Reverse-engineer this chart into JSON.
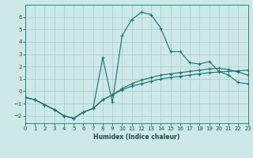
{
  "xlabel": "Humidex (Indice chaleur)",
  "bg_color": "#cde8e8",
  "grid_color": "#aacccc",
  "line_color": "#1a7070",
  "xlim": [
    0,
    23
  ],
  "ylim": [
    -2.6,
    7.0
  ],
  "xticks": [
    0,
    1,
    2,
    3,
    4,
    5,
    6,
    7,
    8,
    9,
    10,
    11,
    12,
    13,
    14,
    15,
    16,
    17,
    18,
    19,
    20,
    21,
    22,
    23
  ],
  "yticks": [
    -2,
    -1,
    0,
    1,
    2,
    3,
    4,
    5,
    6
  ],
  "curve1_x": [
    0,
    1,
    2,
    3,
    4,
    5,
    6,
    7,
    8,
    9,
    10,
    11,
    12,
    13,
    14,
    15,
    16,
    17,
    18,
    19,
    20,
    21,
    22,
    23
  ],
  "curve1_y": [
    -0.5,
    -0.7,
    -1.1,
    -1.5,
    -2.0,
    -2.2,
    -1.7,
    -1.4,
    -0.7,
    -0.3,
    0.1,
    0.4,
    0.6,
    0.8,
    1.0,
    1.1,
    1.2,
    1.3,
    1.4,
    1.5,
    1.55,
    1.6,
    1.65,
    1.7
  ],
  "curve2_x": [
    0,
    1,
    2,
    3,
    4,
    5,
    6,
    7,
    8,
    9,
    10,
    11,
    12,
    13,
    14,
    15,
    16,
    17,
    18,
    19,
    20,
    21,
    22,
    23
  ],
  "curve2_y": [
    -0.5,
    -0.7,
    -1.1,
    -1.5,
    -2.0,
    -2.2,
    -1.7,
    -1.4,
    -0.7,
    -0.3,
    0.2,
    0.6,
    0.9,
    1.1,
    1.3,
    1.4,
    1.5,
    1.6,
    1.7,
    1.8,
    1.85,
    1.75,
    1.55,
    1.3
  ],
  "curve3_x": [
    0,
    1,
    2,
    3,
    4,
    5,
    6,
    7,
    8,
    9,
    10,
    11,
    12,
    13,
    14,
    15,
    16,
    17,
    18,
    19,
    20,
    21,
    22,
    23
  ],
  "curve3_y": [
    -0.5,
    -0.7,
    -1.1,
    -1.5,
    -2.0,
    -2.2,
    -1.7,
    -1.4,
    2.7,
    -0.9,
    4.5,
    5.8,
    6.4,
    6.2,
    5.1,
    3.2,
    3.2,
    2.3,
    2.2,
    2.4,
    1.6,
    1.3,
    0.7,
    0.6
  ]
}
